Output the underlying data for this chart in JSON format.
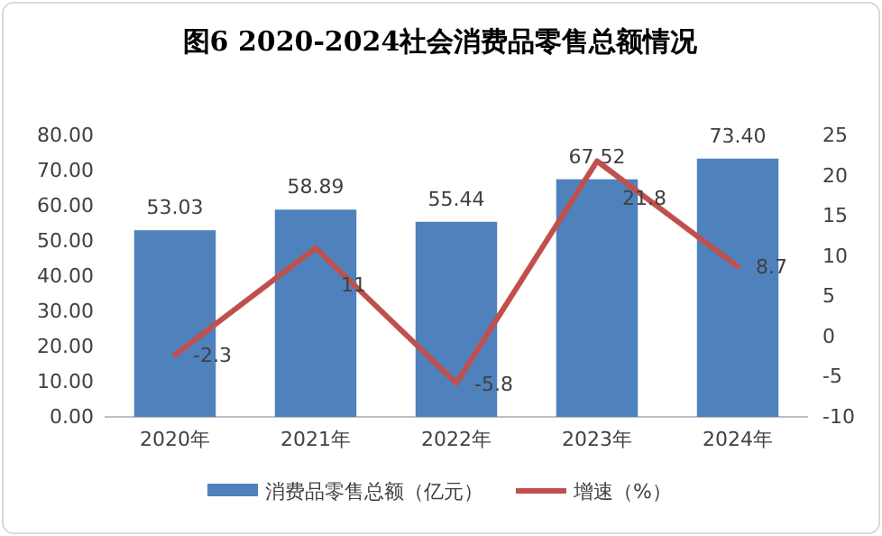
{
  "chart_data": {
    "type": "bar",
    "title": "图6 2020-2024社会消费品零售总额情况",
    "categories": [
      "2020年",
      "2021年",
      "2022年",
      "2023年",
      "2024年"
    ],
    "series": [
      {
        "name": "消费品零售总额（亿元）",
        "color": "#4f81bd",
        "values": [
          53.03,
          58.89,
          55.44,
          67.52,
          73.4
        ],
        "value_labels": [
          "53.03",
          "58.89",
          "55.44",
          "67.52",
          "73.40"
        ]
      },
      {
        "name": "增速（%）",
        "type": "line",
        "axis": "y2",
        "color": "#c0504d",
        "values": [
          -2.3,
          11,
          -5.8,
          21.8,
          8.7
        ],
        "value_labels": [
          "-2.3",
          "11",
          "-5.8",
          "21.8",
          "8.7"
        ]
      }
    ],
    "ylim": [
      0,
      80
    ],
    "yticks": [
      {
        "value": 0,
        "label": "0.00"
      },
      {
        "value": 10,
        "label": "10.00"
      },
      {
        "value": 20,
        "label": "20.00"
      },
      {
        "value": 30,
        "label": "30.00"
      },
      {
        "value": 40,
        "label": "40.00"
      },
      {
        "value": 50,
        "label": "50.00"
      },
      {
        "value": 60,
        "label": "60.00"
      },
      {
        "value": 70,
        "label": "70.00"
      },
      {
        "value": 80,
        "label": "80.00"
      }
    ],
    "y2lim": [
      -10,
      25
    ],
    "y2ticks": [
      -10,
      -5,
      0,
      5,
      10,
      15,
      20,
      25
    ],
    "legend": "bottom",
    "marker": "none",
    "line_style": "solid",
    "grid": false
  }
}
